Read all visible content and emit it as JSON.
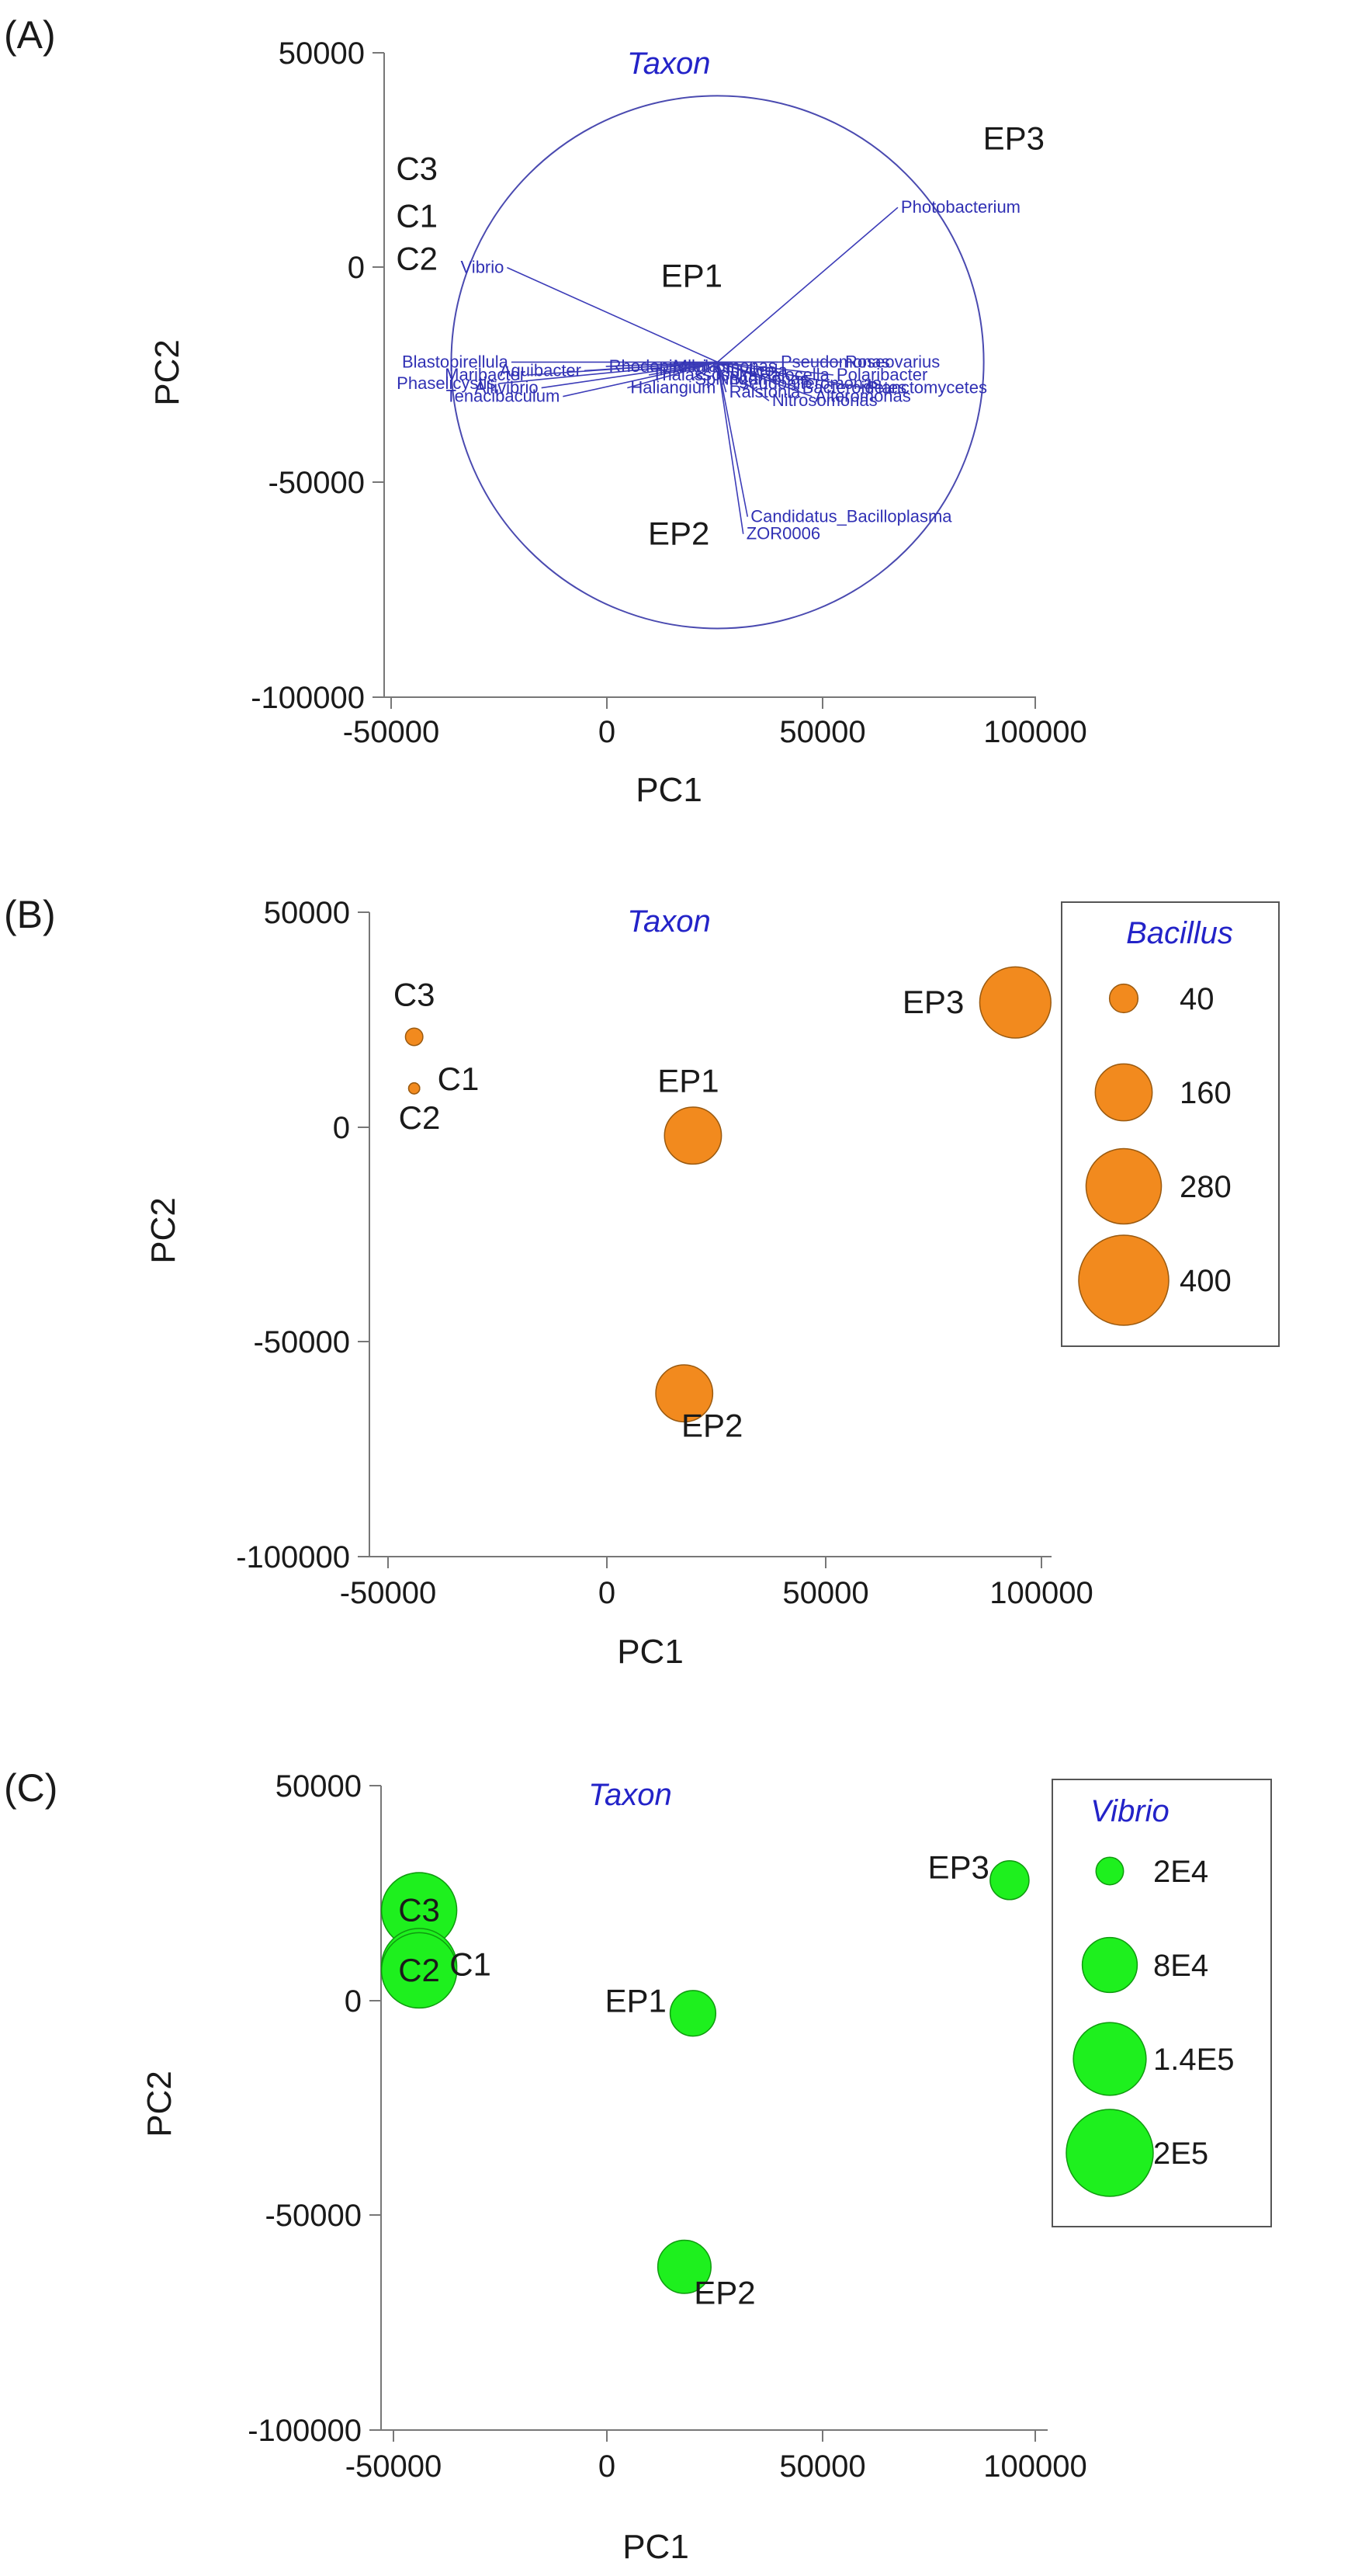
{
  "chart_data": [
    {
      "panel": "(A)",
      "type": "scatter",
      "title": "Taxon",
      "xlabel": "PC1",
      "ylabel": "PC2",
      "xlim": [
        -50000,
        100000
      ],
      "ylim": [
        -100000,
        50000
      ],
      "xticks": [
        -50000,
        0,
        50000,
        100000
      ],
      "yticks": [
        50000,
        0,
        -50000,
        -100000
      ],
      "xtick_labels": [
        "-50000",
        "0",
        "50000",
        "100000"
      ],
      "ytick_labels": [
        "50000",
        "0",
        "-50000",
        "-100000"
      ],
      "points": [
        {
          "label": "C3",
          "x": -44000,
          "y": 23000
        },
        {
          "label": "C1",
          "x": -44000,
          "y": 12000
        },
        {
          "label": "C2",
          "x": -44000,
          "y": 2000
        },
        {
          "label": "EP1",
          "x": 20000,
          "y": -2000
        },
        {
          "label": "EP2",
          "x": 17000,
          "y": -62000
        },
        {
          "label": "EP3",
          "x": 95000,
          "y": 30000
        }
      ],
      "biplot": {
        "circle_center": [
          26000,
          -22000
        ],
        "circle_radius": 62000,
        "vectors": [
          {
            "label": "Photobacterium",
            "x": 68000,
            "y": 14000
          },
          {
            "label": "Vibrio",
            "x": -23000,
            "y": 0
          },
          {
            "label": "Candidatus_Bacilloplasma",
            "x": 33000,
            "y": -58000
          },
          {
            "label": "ZOR0006",
            "x": 32000,
            "y": -62000
          },
          {
            "label": "Tenacibaculum",
            "x": -10000,
            "y": -30000
          },
          {
            "label": "Phaselicystis",
            "x": -25000,
            "y": -27000
          },
          {
            "label": "Blastopirellula",
            "x": -22000,
            "y": -22000
          },
          {
            "label": "Marinomonas",
            "x": 15000,
            "y": -23000
          },
          {
            "label": "Rhodopirellula",
            "x": 0,
            "y": -23000
          },
          {
            "label": "Pseudomonas",
            "x": 40000,
            "y": -22000
          },
          {
            "label": "Roseovarius",
            "x": 55000,
            "y": -22000
          },
          {
            "label": "Sphingomonas",
            "x": 20000,
            "y": -26000
          },
          {
            "label": "Pseudoalteromonas",
            "x": 28000,
            "y": -27000
          },
          {
            "label": "Bacteroidetes",
            "x": 45000,
            "y": -28000
          },
          {
            "label": "Planctomycetes",
            "x": 60000,
            "y": -28000
          },
          {
            "label": "Haliangium",
            "x": 5000,
            "y": -28000
          },
          {
            "label": "Aliivibrio",
            "x": -15000,
            "y": -28000
          },
          {
            "label": "Alteromonas",
            "x": 48000,
            "y": -30000
          },
          {
            "label": "Aquibacter",
            "x": -5000,
            "y": -24000
          },
          {
            "label": "Halocella",
            "x": 35000,
            "y": -25000
          },
          {
            "label": "Thalassospira",
            "x": 10000,
            "y": -25000
          },
          {
            "label": "Polaribacter",
            "x": 53000,
            "y": -25000
          },
          {
            "label": "Maribacter",
            "x": -18000,
            "y": -25000
          },
          {
            "label": "Fluviicola",
            "x": 25000,
            "y": -24000
          },
          {
            "label": "Nitrosomonas",
            "x": 38000,
            "y": -31000
          },
          {
            "label": "Ralstonia",
            "x": 28000,
            "y": -29000
          }
        ]
      }
    },
    {
      "panel": "(B)",
      "type": "scatter",
      "title": "Taxon",
      "xlabel": "PC1",
      "ylabel": "PC2",
      "xlim": [
        -50000,
        100000
      ],
      "ylim": [
        -100000,
        50000
      ],
      "xticks": [
        -50000,
        0,
        50000,
        100000
      ],
      "yticks": [
        50000,
        0,
        -50000,
        -100000
      ],
      "xtick_labels": [
        "-50000",
        "0",
        "50000",
        "100000"
      ],
      "ytick_labels": [
        "50000",
        "0",
        "-50000",
        "-100000"
      ],
      "bubble_taxon": "Bacillus",
      "bubble_color": "#f28a1e",
      "bubble_stroke": "#9a5a10",
      "points": [
        {
          "label": "C3",
          "x": -44000,
          "y": 21000,
          "value": 15
        },
        {
          "label": "C1",
          "x": -44000,
          "y": 9000,
          "value": 6
        },
        {
          "label": "C2",
          "x": -44000,
          "y": 9000,
          "value": 6
        },
        {
          "label": "EP1",
          "x": 20000,
          "y": -2000,
          "value": 160
        },
        {
          "label": "EP2",
          "x": 18000,
          "y": -62000,
          "value": 160
        },
        {
          "label": "EP3",
          "x": 94000,
          "y": 29000,
          "value": 250
        }
      ],
      "legend": {
        "title": "Bacillus",
        "items": [
          "40",
          "160",
          "280",
          "400"
        ],
        "values": [
          40,
          160,
          280,
          400
        ]
      },
      "bubble_max_value": 400
    },
    {
      "panel": "(C)",
      "type": "scatter",
      "title": "Taxon",
      "xlabel": "PC1",
      "ylabel": "PC2",
      "xlim": [
        -50000,
        100000
      ],
      "ylim": [
        -100000,
        50000
      ],
      "xticks": [
        -50000,
        0,
        50000,
        100000
      ],
      "yticks": [
        50000,
        0,
        -50000,
        -100000
      ],
      "xtick_labels": [
        "-50000",
        "0",
        "50000",
        "100000"
      ],
      "ytick_labels": [
        "50000",
        "0",
        "-50000",
        "-100000"
      ],
      "bubble_taxon": "Vibrio",
      "bubble_color": "#1ef01e",
      "bubble_stroke": "#0f9a0f",
      "points": [
        {
          "label": "C3",
          "x": -44000,
          "y": 21000,
          "value": 150000
        },
        {
          "label": "C1",
          "x": -44000,
          "y": 8000,
          "value": 150000
        },
        {
          "label": "C2",
          "x": -44000,
          "y": 7000,
          "value": 150000
        },
        {
          "label": "EP1",
          "x": 20000,
          "y": -3000,
          "value": 55000
        },
        {
          "label": "EP2",
          "x": 18000,
          "y": -62000,
          "value": 75000
        },
        {
          "label": "EP3",
          "x": 94000,
          "y": 28000,
          "value": 40000
        }
      ],
      "legend": {
        "title": "Vibrio",
        "items": [
          "2E4",
          "8E4",
          "1.4E5",
          "2E5"
        ],
        "values": [
          20000,
          80000,
          140000,
          200000
        ]
      },
      "bubble_max_value": 200000
    }
  ]
}
